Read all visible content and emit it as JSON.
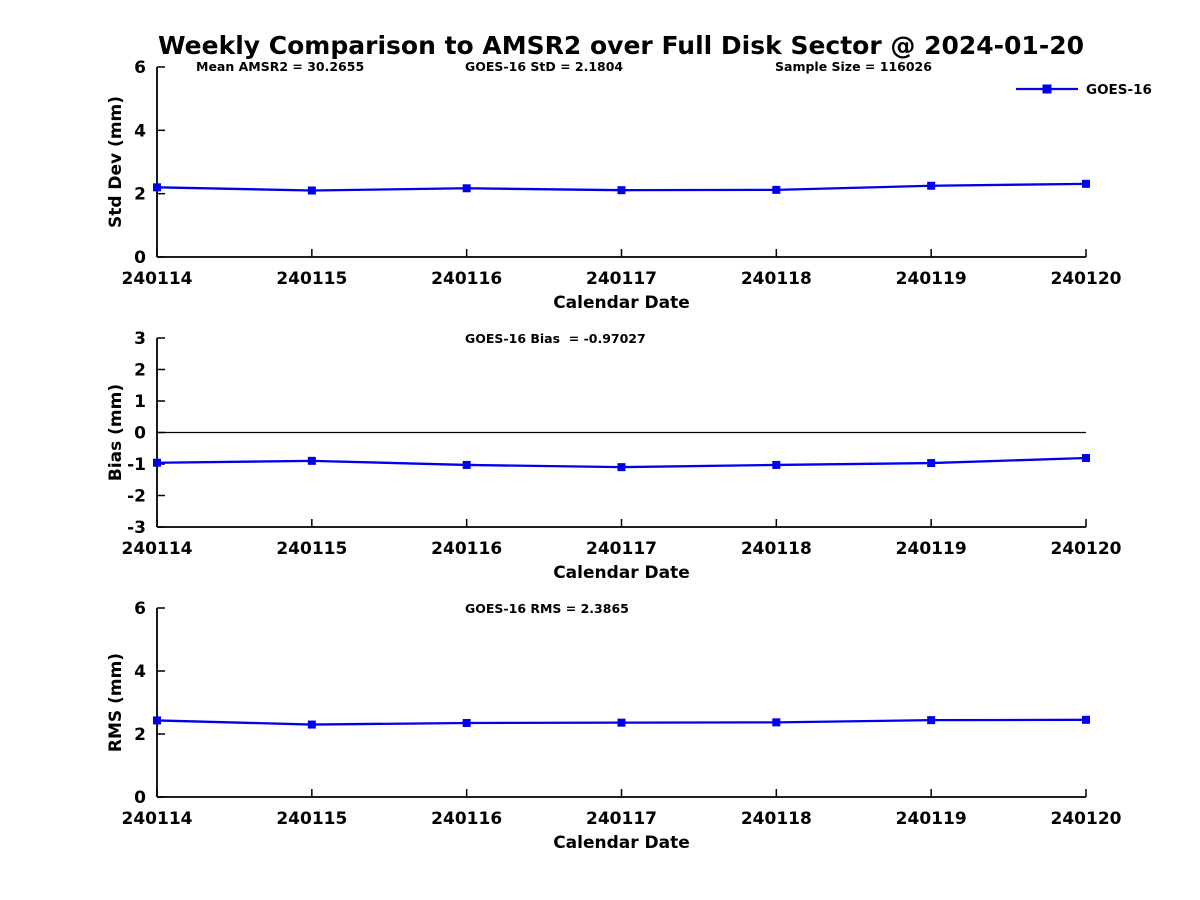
{
  "figure": {
    "title": "Weekly Comparison to AMSR2 over Full Disk Sector @ 2024-01-20",
    "background_color": "#FFFFFF",
    "axis_color": "#000000",
    "line_color": "#0000EE",
    "legend": {
      "label": "GOES-16",
      "position": "top-right",
      "marker": "filled-square"
    }
  },
  "chart_data": [
    {
      "type": "line",
      "subplot": "std-dev",
      "annotations": [
        "Mean AMSR2 = 30.2655",
        "GOES-16 StD = 2.1804",
        "Sample Size = 116026"
      ],
      "categories": [
        "240114",
        "240115",
        "240116",
        "240117",
        "240118",
        "240119",
        "240120"
      ],
      "series": [
        {
          "name": "GOES-16",
          "values": [
            2.2,
            2.1,
            2.17,
            2.11,
            2.12,
            2.25,
            2.31
          ]
        }
      ],
      "xlabel": "Calendar Date",
      "ylabel": "Std Dev (mm)",
      "ylim": [
        0,
        6
      ],
      "yticks": [
        0,
        2,
        4,
        6
      ],
      "grid": false,
      "zero_line": false,
      "marker": "filled-square"
    },
    {
      "type": "line",
      "subplot": "bias",
      "annotations": [
        "GOES-16 Bias  = -0.97027"
      ],
      "categories": [
        "240114",
        "240115",
        "240116",
        "240117",
        "240118",
        "240119",
        "240120"
      ],
      "series": [
        {
          "name": "GOES-16",
          "values": [
            -0.96,
            -0.9,
            -1.03,
            -1.1,
            -1.03,
            -0.97,
            -0.81
          ]
        }
      ],
      "xlabel": "Calendar Date",
      "ylabel": "Bias (mm)",
      "ylim": [
        -3,
        3
      ],
      "yticks": [
        -3,
        -2,
        -1,
        0,
        1,
        2,
        3
      ],
      "grid": false,
      "zero_line": true,
      "marker": "filled-square"
    },
    {
      "type": "line",
      "subplot": "rms",
      "annotations": [
        "GOES-16 RMS = 2.3865"
      ],
      "categories": [
        "240114",
        "240115",
        "240116",
        "240117",
        "240118",
        "240119",
        "240120"
      ],
      "series": [
        {
          "name": "GOES-16",
          "values": [
            2.43,
            2.3,
            2.35,
            2.36,
            2.37,
            2.44,
            2.45
          ]
        }
      ],
      "xlabel": "Calendar Date",
      "ylabel": "RMS (mm)",
      "ylim": [
        0,
        6
      ],
      "yticks": [
        0,
        2,
        4,
        6
      ],
      "grid": false,
      "zero_line": false,
      "marker": "filled-square"
    }
  ]
}
